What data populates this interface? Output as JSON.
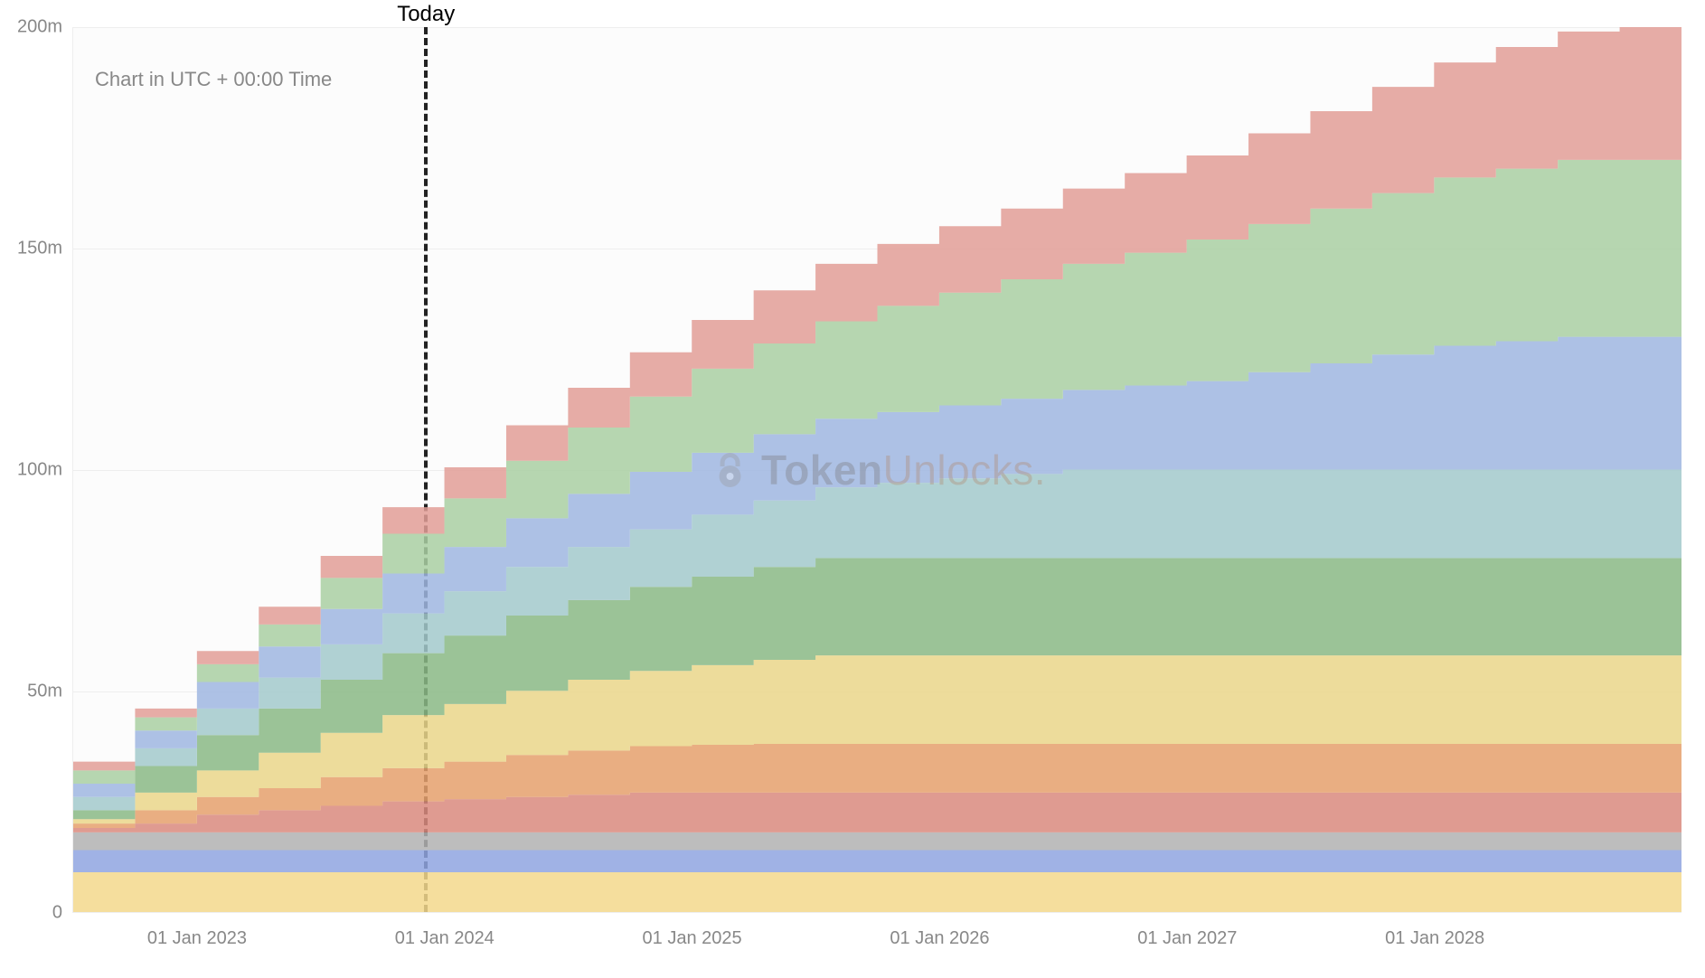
{
  "chart": {
    "type": "stacked-area-step",
    "note": "Chart in UTC + 00:00 Time",
    "background_color": "#fcfcfc",
    "grid_color": "#eeeeee",
    "label_color": "#888888",
    "label_fontsize": 20,
    "y": {
      "lim": [
        0,
        200
      ],
      "ticks": [
        0,
        50,
        100,
        150,
        200
      ],
      "tick_labels": [
        "0",
        "50m",
        "100m",
        "150m",
        "200m"
      ]
    },
    "x": {
      "indices": [
        0,
        1,
        2,
        3,
        4,
        5,
        6,
        7,
        8,
        9,
        10,
        11,
        12,
        13,
        14,
        15,
        16,
        17,
        18,
        19,
        20,
        21,
        22,
        23,
        24,
        25,
        26
      ],
      "n": 26,
      "tick_indices": [
        2,
        6,
        10,
        14,
        18,
        22,
        26
      ],
      "tick_labels": [
        "01 Jan 2023",
        "01 Jan 2024",
        "01 Jan 2025",
        "01 Jan 2026",
        "01 Jan 2027",
        "01 Jan 2028",
        ""
      ]
    },
    "today": {
      "label": "Today",
      "x_index": 5.7,
      "line_color": "#222222",
      "line_dash": "4,4",
      "label_fontsize": 24
    },
    "series": [
      {
        "name": "s0",
        "color": "#f3d88c",
        "opacity": 0.85,
        "values": [
          9,
          9,
          9,
          9,
          9,
          9,
          9,
          9,
          9,
          9,
          9,
          9,
          9,
          9,
          9,
          9,
          9,
          9,
          9,
          9,
          9,
          9,
          9,
          9,
          9,
          9,
          9
        ]
      },
      {
        "name": "s1",
        "color": "#8fa4e1",
        "opacity": 0.85,
        "values": [
          5,
          5,
          5,
          5,
          5,
          5,
          5,
          5,
          5,
          5,
          5,
          5,
          5,
          5,
          5,
          5,
          5,
          5,
          5,
          5,
          5,
          5,
          5,
          5,
          5,
          5,
          5
        ]
      },
      {
        "name": "s2",
        "color": "#b1b1b1",
        "opacity": 0.85,
        "values": [
          4,
          4,
          4,
          4,
          4,
          4,
          4,
          4,
          4,
          4,
          4,
          4,
          4,
          4,
          4,
          4,
          4,
          4,
          4,
          4,
          4,
          4,
          4,
          4,
          4,
          4,
          4
        ]
      },
      {
        "name": "s3",
        "color": "#d98a7e",
        "opacity": 0.85,
        "values": [
          1,
          2,
          4,
          5,
          6,
          7,
          7.5,
          8,
          8.5,
          9,
          9,
          9,
          9,
          9,
          9,
          9,
          9,
          9,
          9,
          9,
          9,
          9,
          9,
          9,
          9,
          9,
          9
        ]
      },
      {
        "name": "s4",
        "color": "#e5a06c",
        "opacity": 0.85,
        "values": [
          1,
          3,
          4,
          5,
          6.5,
          7.5,
          8.5,
          9.5,
          10,
          10.5,
          10.8,
          11,
          11,
          11,
          11,
          11,
          11,
          11,
          11,
          11,
          11,
          11,
          11,
          11,
          11,
          11,
          11
        ]
      },
      {
        "name": "s5",
        "color": "#ead68a",
        "opacity": 0.85,
        "values": [
          1,
          4,
          6,
          8,
          10,
          12,
          13,
          14.5,
          16,
          17,
          18,
          19,
          20,
          20,
          20,
          20,
          20,
          20,
          20,
          20,
          20,
          20,
          20,
          20,
          20,
          20,
          20
        ]
      },
      {
        "name": "s6",
        "color": "#8ab885",
        "opacity": 0.85,
        "values": [
          2,
          6,
          8,
          10,
          12,
          14,
          15.5,
          17,
          18,
          19,
          20,
          21,
          22,
          22,
          22,
          22,
          22,
          22,
          22,
          22,
          22,
          22,
          22,
          22,
          22,
          22,
          22
        ]
      },
      {
        "name": "s7",
        "color": "#a2c9cb",
        "opacity": 0.85,
        "values": [
          3,
          4,
          6,
          7,
          8,
          9,
          10,
          11,
          12,
          13,
          14,
          15,
          16,
          17,
          18,
          19,
          20,
          20,
          20,
          20,
          20,
          20,
          20,
          20,
          20,
          20,
          20
        ]
      },
      {
        "name": "s8",
        "color": "#9fb6e0",
        "opacity": 0.85,
        "values": [
          3,
          4,
          6,
          7,
          8,
          9,
          10,
          11,
          12,
          13,
          14,
          15,
          15.5,
          16,
          16.5,
          17,
          18,
          19,
          20,
          22,
          24,
          26,
          28,
          29,
          30,
          30,
          30
        ]
      },
      {
        "name": "s9",
        "color": "#a9cfa2",
        "opacity": 0.85,
        "values": [
          3,
          3,
          4,
          5,
          7,
          9,
          11,
          13,
          15,
          17,
          19,
          20.5,
          22,
          24,
          25.5,
          27,
          28.5,
          30,
          32,
          33.5,
          35,
          36.5,
          38,
          39,
          40,
          40,
          40
        ]
      },
      {
        "name": "s10",
        "color": "#e29d97",
        "opacity": 0.85,
        "values": [
          2,
          2,
          3,
          4,
          5,
          6,
          7,
          8,
          9,
          10,
          11,
          12,
          13,
          14,
          15,
          16,
          17,
          18,
          19,
          20.5,
          22,
          24,
          26,
          27.5,
          29,
          30,
          30
        ]
      }
    ],
    "watermark": {
      "text_token": "Token",
      "text_unlocks": "Unlocks",
      "text_dot": ".",
      "icon_color": "#888888",
      "token_color": "#777777",
      "unlocks_color": "#b0876a",
      "fontsize": 46,
      "opacity": 0.35
    }
  }
}
